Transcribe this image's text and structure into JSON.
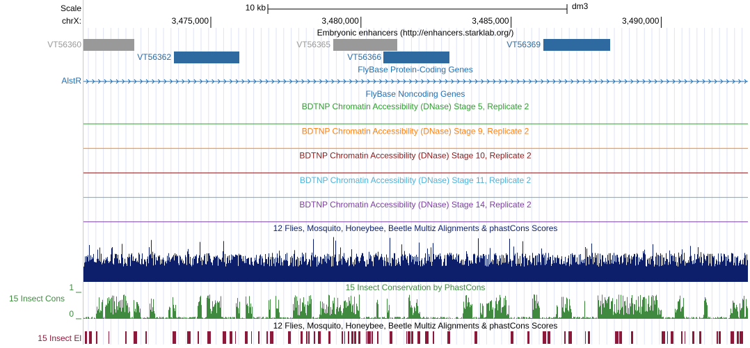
{
  "header": {
    "scale_label": "Scale",
    "chrom_label": "chrX:",
    "scale_bar": "10 kb",
    "assembly": "dm3",
    "positions": [
      "3,475,000",
      "3,480,000",
      "3,485,000",
      "3,490,000"
    ]
  },
  "enhancers": {
    "title": "Embryonic enhancers (http://enhancers.starklab.org/)",
    "features": [
      "VT56360",
      "VT56362",
      "VT56365",
      "VT56366",
      "VT56369"
    ]
  },
  "genes": {
    "title": "FlyBase Protein-Coding Genes",
    "gene": "AlstR"
  },
  "noncoding": {
    "title": "FlyBase Noncoding Genes"
  },
  "dnase": [
    "BDTNP Chromatin Accessibility (DNase) Stage 5, Replicate 2",
    "BDTNP Chromatin Accessibility (DNase) Stage 9, Replicate 2",
    "BDTNP Chromatin Accessibility (DNase) Stage 10, Replicate 2",
    "BDTNP Chromatin Accessibility (DNase) Stage 11, Replicate 2",
    "BDTNP Chromatin Accessibility (DNase) Stage 14, Replicate 2"
  ],
  "multiz": {
    "title": "12 Flies, Mosquito, Honeybee, Beetle Multiz Alignments & phastCons Scores"
  },
  "phastcons": {
    "title": "15 Insect Conservation by PhastCons",
    "label": "15 Insect Cons",
    "max": "1",
    "min": "0"
  },
  "elements": {
    "title": "12 Flies, Mosquito, Honeybee, Beetle Multiz Alignments & phastCons Scores",
    "label": "15 Insect El"
  }
}
